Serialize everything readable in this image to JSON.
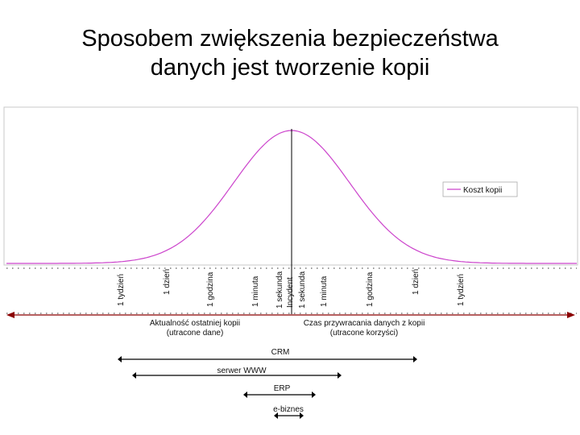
{
  "title": {
    "line1": "Sposobem zwiększenia bezpieczeństwa",
    "line2": "danych jest tworzenie kopii"
  },
  "legend": {
    "label": "Koszt kopii"
  },
  "curve_color": "#cc44cc",
  "axis_color": "#8b0000",
  "tick_labels_left": [
    "1 tydzień",
    "1 dzień",
    "1 godzina",
    "1 minuta",
    "1 sekunda"
  ],
  "center_label": "Incydent",
  "tick_labels_right": [
    "1 sekunda",
    "1 minuta",
    "1 godzina",
    "1 dzień",
    "1 tydzień"
  ],
  "axis_caption_left": {
    "line1": "Aktualność ostatniej kopii",
    "line2": "(utracone dane)"
  },
  "axis_caption_right": {
    "line1": "Czas przywracania danych z kopii",
    "line2": "(utracone korzyści)"
  },
  "ranges": [
    {
      "label": "CRM"
    },
    {
      "label": "serwer WWW"
    },
    {
      "label": "ERP"
    },
    {
      "label": "e-biznes"
    }
  ]
}
